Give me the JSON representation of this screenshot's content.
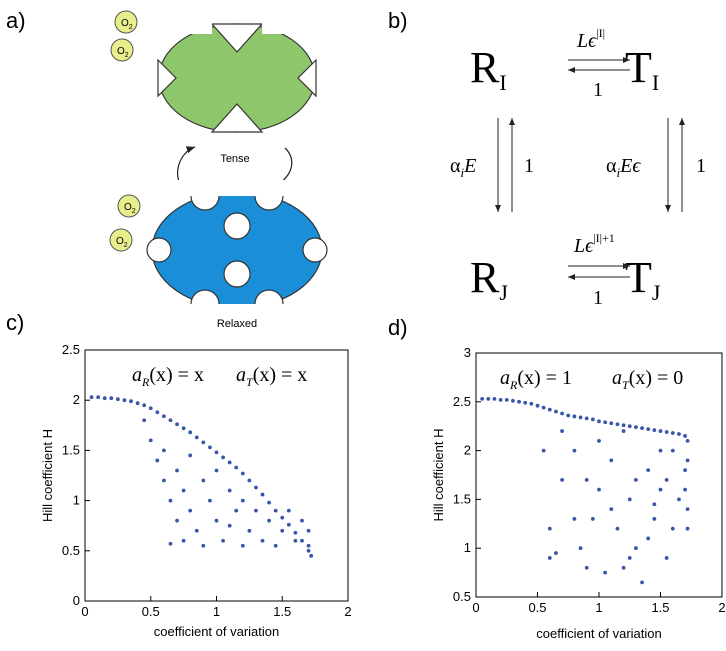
{
  "panels": {
    "a": "a)",
    "b": "b)",
    "c": "c)",
    "d": "d)"
  },
  "diagram_a": {
    "oxygen": {
      "symbol": "O",
      "subscript": "2"
    },
    "tense": "Tense",
    "relaxed": "Relaxed"
  },
  "diagram_b": {
    "states": [
      {
        "symbol": "R",
        "subscript": "I"
      },
      {
        "symbol": "T",
        "subscript": "I"
      },
      {
        "symbol": "R",
        "subscript": "J"
      },
      {
        "symbol": "T",
        "subscript": "J"
      }
    ],
    "top_forward": {
      "text": "Lϵ",
      "superscript": "|I|"
    },
    "top_backward": "1",
    "left_down": {
      "text": "α",
      "subscript": "i",
      "rest": "E"
    },
    "left_up": "1",
    "right_down": {
      "text": "α",
      "subscript": "i",
      "rest": "Eϵ"
    },
    "right_up": "1",
    "bottom_forward": {
      "text": "Lϵ",
      "superscript": "|I|+1"
    },
    "bottom_backward": "1"
  },
  "chart_data": [
    {
      "type": "scatter",
      "xlabel": "coefficient of variation",
      "ylabel": "Hill coefficient H",
      "annotations": [
        {
          "base": "a",
          "sub": "R",
          "rest": "(x) = x"
        },
        {
          "base": "a",
          "sub": "T",
          "rest": "(x) = x"
        }
      ],
      "xlim": [
        0,
        2
      ],
      "xticks": [
        0,
        0.5,
        1,
        1.5,
        2
      ],
      "ylim": [
        0,
        2.5
      ],
      "yticks": [
        0,
        0.5,
        1,
        1.5,
        2,
        2.5
      ],
      "color": "#3a56a8",
      "x": [
        0.05,
        0.1,
        0.15,
        0.2,
        0.25,
        0.3,
        0.35,
        0.4,
        0.45,
        0.5,
        0.55,
        0.6,
        0.65,
        0.7,
        0.75,
        0.8,
        0.85,
        0.9,
        0.95,
        1.0,
        1.05,
        1.1,
        1.15,
        1.2,
        1.25,
        1.3,
        1.35,
        1.4,
        1.45,
        1.5,
        1.55,
        1.6,
        1.65,
        1.7,
        1.72,
        0.45,
        0.5,
        0.55,
        0.6,
        0.6,
        0.65,
        0.65,
        0.7,
        0.7,
        0.75,
        0.75,
        0.8,
        0.8,
        0.85,
        0.9,
        0.9,
        0.95,
        1.0,
        1.0,
        1.05,
        1.1,
        1.1,
        1.15,
        1.2,
        1.2,
        1.25,
        1.3,
        1.35,
        1.4,
        1.45,
        1.5,
        1.55,
        1.6,
        1.65,
        1.7,
        1.7
      ],
      "values": [
        2.03,
        2.03,
        2.02,
        2.02,
        2.01,
        2.0,
        1.99,
        1.97,
        1.95,
        1.92,
        1.88,
        1.84,
        1.8,
        1.76,
        1.72,
        1.68,
        1.63,
        1.58,
        1.53,
        1.48,
        1.43,
        1.38,
        1.33,
        1.27,
        1.2,
        1.13,
        1.06,
        0.98,
        0.9,
        0.83,
        0.76,
        0.68,
        0.6,
        0.5,
        0.45,
        1.8,
        1.6,
        1.4,
        1.2,
        1.5,
        1.0,
        0.57,
        1.3,
        0.8,
        1.1,
        0.6,
        1.45,
        0.9,
        0.7,
        1.2,
        0.55,
        1.0,
        0.8,
        1.3,
        0.6,
        1.1,
        0.75,
        0.9,
        0.55,
        1.0,
        0.7,
        0.9,
        0.6,
        0.8,
        0.55,
        0.7,
        0.9,
        0.6,
        0.8,
        0.55,
        0.7
      ]
    },
    {
      "type": "scatter",
      "xlabel": "coefficient of variation",
      "ylabel": "Hill coefficient H",
      "annotations": [
        {
          "base": "a",
          "sub": "R",
          "rest": "(x) = 1"
        },
        {
          "base": "a",
          "sub": "T",
          "rest": "(x) = 0"
        }
      ],
      "xlim": [
        0,
        2
      ],
      "xticks": [
        0,
        0.5,
        1,
        1.5,
        2
      ],
      "ylim": [
        0.5,
        3
      ],
      "yticks": [
        0.5,
        1,
        1.5,
        2,
        2.5,
        3
      ],
      "color": "#3a56a8",
      "x": [
        0.05,
        0.1,
        0.15,
        0.2,
        0.25,
        0.3,
        0.35,
        0.4,
        0.45,
        0.5,
        0.55,
        0.6,
        0.65,
        0.7,
        0.75,
        0.8,
        0.85,
        0.9,
        0.95,
        1.0,
        1.05,
        1.1,
        1.15,
        1.2,
        1.25,
        1.3,
        1.35,
        1.4,
        1.45,
        1.5,
        1.55,
        1.6,
        1.65,
        1.7,
        0.6,
        0.6,
        0.65,
        0.7,
        0.8,
        0.9,
        1.0,
        1.05,
        1.1,
        1.15,
        1.2,
        1.25,
        1.3,
        1.35,
        1.4,
        1.45,
        1.5,
        1.55,
        1.6,
        1.65,
        1.7,
        1.7,
        1.72,
        1.72,
        1.72,
        1.72,
        0.55,
        0.7,
        0.8,
        0.9,
        1.0,
        1.2,
        1.3,
        1.5,
        1.6,
        1.4,
        1.1,
        0.95,
        0.85,
        1.25,
        1.45,
        1.55
      ],
      "values": [
        2.53,
        2.53,
        2.53,
        2.52,
        2.52,
        2.51,
        2.5,
        2.49,
        2.48,
        2.46,
        2.44,
        2.42,
        2.4,
        2.38,
        2.36,
        2.35,
        2.34,
        2.33,
        2.32,
        2.3,
        2.29,
        2.28,
        2.27,
        2.26,
        2.25,
        2.24,
        2.23,
        2.22,
        2.21,
        2.2,
        2.19,
        2.18,
        2.17,
        2.15,
        0.9,
        1.2,
        0.95,
        1.7,
        1.3,
        0.8,
        1.6,
        0.75,
        1.9,
        1.2,
        0.8,
        1.5,
        1.0,
        0.65,
        1.8,
        1.3,
        1.6,
        0.9,
        2.0,
        1.5,
        1.8,
        1.6,
        2.1,
        1.4,
        1.2,
        1.9,
        2.0,
        2.2,
        2.0,
        1.7,
        2.1,
        2.2,
        1.7,
        2.0,
        1.2,
        1.1,
        1.4,
        1.3,
        1.0,
        0.9,
        1.45,
        1.7
      ]
    }
  ]
}
